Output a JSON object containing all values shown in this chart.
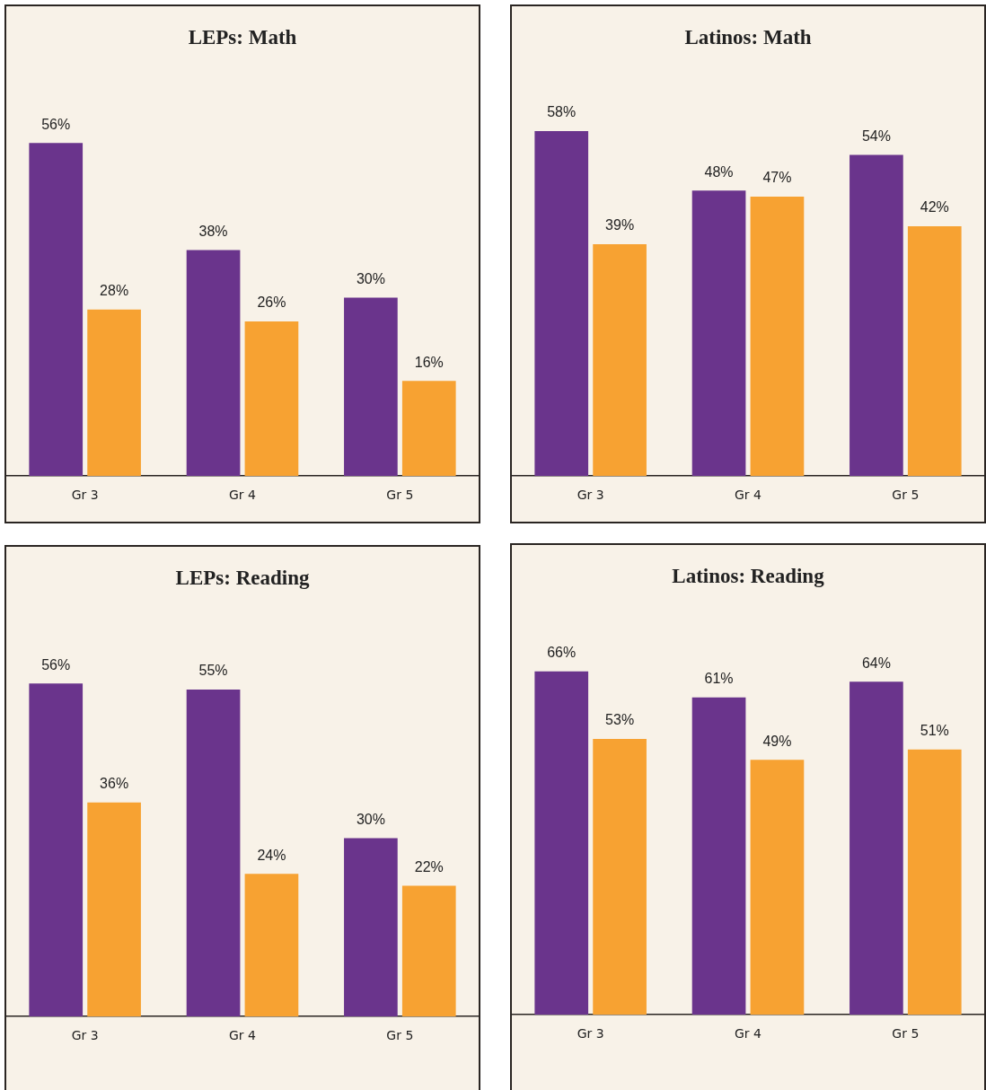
{
  "chart_data": [
    {
      "type": "bar",
      "title": "LEPs: Math",
      "categories": [
        "Gr 3",
        "Gr 4",
        "Gr 5"
      ],
      "tick_labels": "x",
      "series": [
        {
          "color": "#6a348c",
          "values": [
            56,
            38,
            30
          ],
          "value_labels": [
            "56%",
            "38%",
            "30%"
          ]
        },
        {
          "color": "#f7a232",
          "values": [
            28,
            26,
            16
          ],
          "value_labels": [
            "28%",
            "26%",
            "16%"
          ]
        }
      ]
    },
    {
      "type": "bar",
      "title": "Latinos: Math",
      "categories": [
        "Gr 3",
        "Gr 4",
        "Gr 5"
      ],
      "tick_labels": "x",
      "series": [
        {
          "color": "#6a348c",
          "values": [
            58,
            48,
            54
          ],
          "value_labels": [
            "58%",
            "48%",
            "54%"
          ]
        },
        {
          "color": "#f7a232",
          "values": [
            39,
            47,
            42
          ],
          "value_labels": [
            "39%",
            "47%",
            "42%"
          ]
        }
      ]
    },
    {
      "type": "bar",
      "title": "LEPs: Reading",
      "categories": [
        "Gr 3",
        "Gr 4",
        "Gr 5"
      ],
      "tick_labels": "x",
      "series": [
        {
          "color": "#6a348c",
          "values": [
            56,
            55,
            30
          ],
          "value_labels": [
            "56%",
            "55%",
            "30%"
          ]
        },
        {
          "color": "#f7a232",
          "values": [
            36,
            24,
            22
          ],
          "value_labels": [
            "36%",
            "24%",
            "22%"
          ]
        }
      ]
    },
    {
      "type": "bar",
      "title": "Latinos: Reading",
      "categories": [
        "Gr 3",
        "Gr 4",
        "Gr 5"
      ],
      "tick_labels": "x",
      "series": [
        {
          "color": "#6a348c",
          "values": [
            66,
            61,
            64
          ],
          "value_labels": [
            "66%",
            "61%",
            "64%"
          ]
        },
        {
          "color": "#f7a232",
          "values": [
            53,
            49,
            51
          ],
          "value_labels": [
            "53%",
            "49%",
            "51%"
          ]
        }
      ]
    }
  ]
}
